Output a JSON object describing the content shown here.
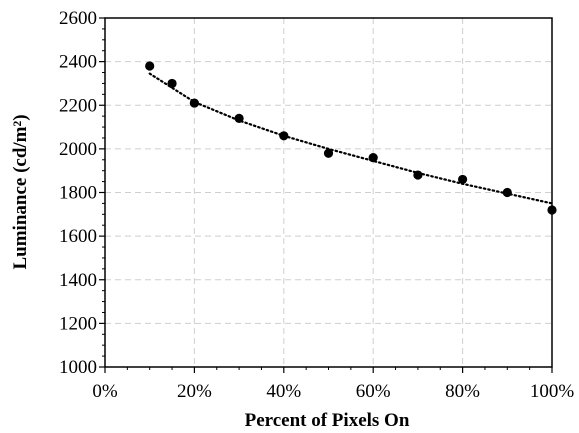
{
  "chart_data": {
    "type": "scatter",
    "title": "",
    "xlabel": "Percent of Pixels On",
    "ylabel": "Luminance (cd/m²)",
    "xlim": [
      0,
      100
    ],
    "ylim": [
      1000,
      2600
    ],
    "x_ticks": [
      0,
      20,
      40,
      60,
      80,
      100
    ],
    "x_tick_labels": [
      "0%",
      "20%",
      "40%",
      "60%",
      "80%",
      "100%"
    ],
    "y_ticks": [
      1000,
      1200,
      1400,
      1600,
      1800,
      2000,
      2200,
      2400,
      2600
    ],
    "y_tick_labels": [
      "1000",
      "1200",
      "1400",
      "1600",
      "1800",
      "2000",
      "2200",
      "2400",
      "2600"
    ],
    "grid": true,
    "series": [
      {
        "x": [
          10,
          15,
          20,
          30,
          40,
          50,
          60,
          70,
          80,
          90,
          100
        ],
        "y": [
          2380,
          2300,
          2210,
          2140,
          2060,
          1980,
          1960,
          1880,
          1860,
          1800,
          1720
        ],
        "color": "#000000",
        "marker": "circle"
      }
    ],
    "trendline": {
      "style": "dotted",
      "color": "#000000",
      "x": [
        10,
        20,
        30,
        40,
        50,
        60,
        70,
        80,
        90,
        100
      ],
      "y": [
        2345,
        2215,
        2130,
        2060,
        2000,
        1945,
        1890,
        1840,
        1795,
        1750
      ]
    }
  }
}
